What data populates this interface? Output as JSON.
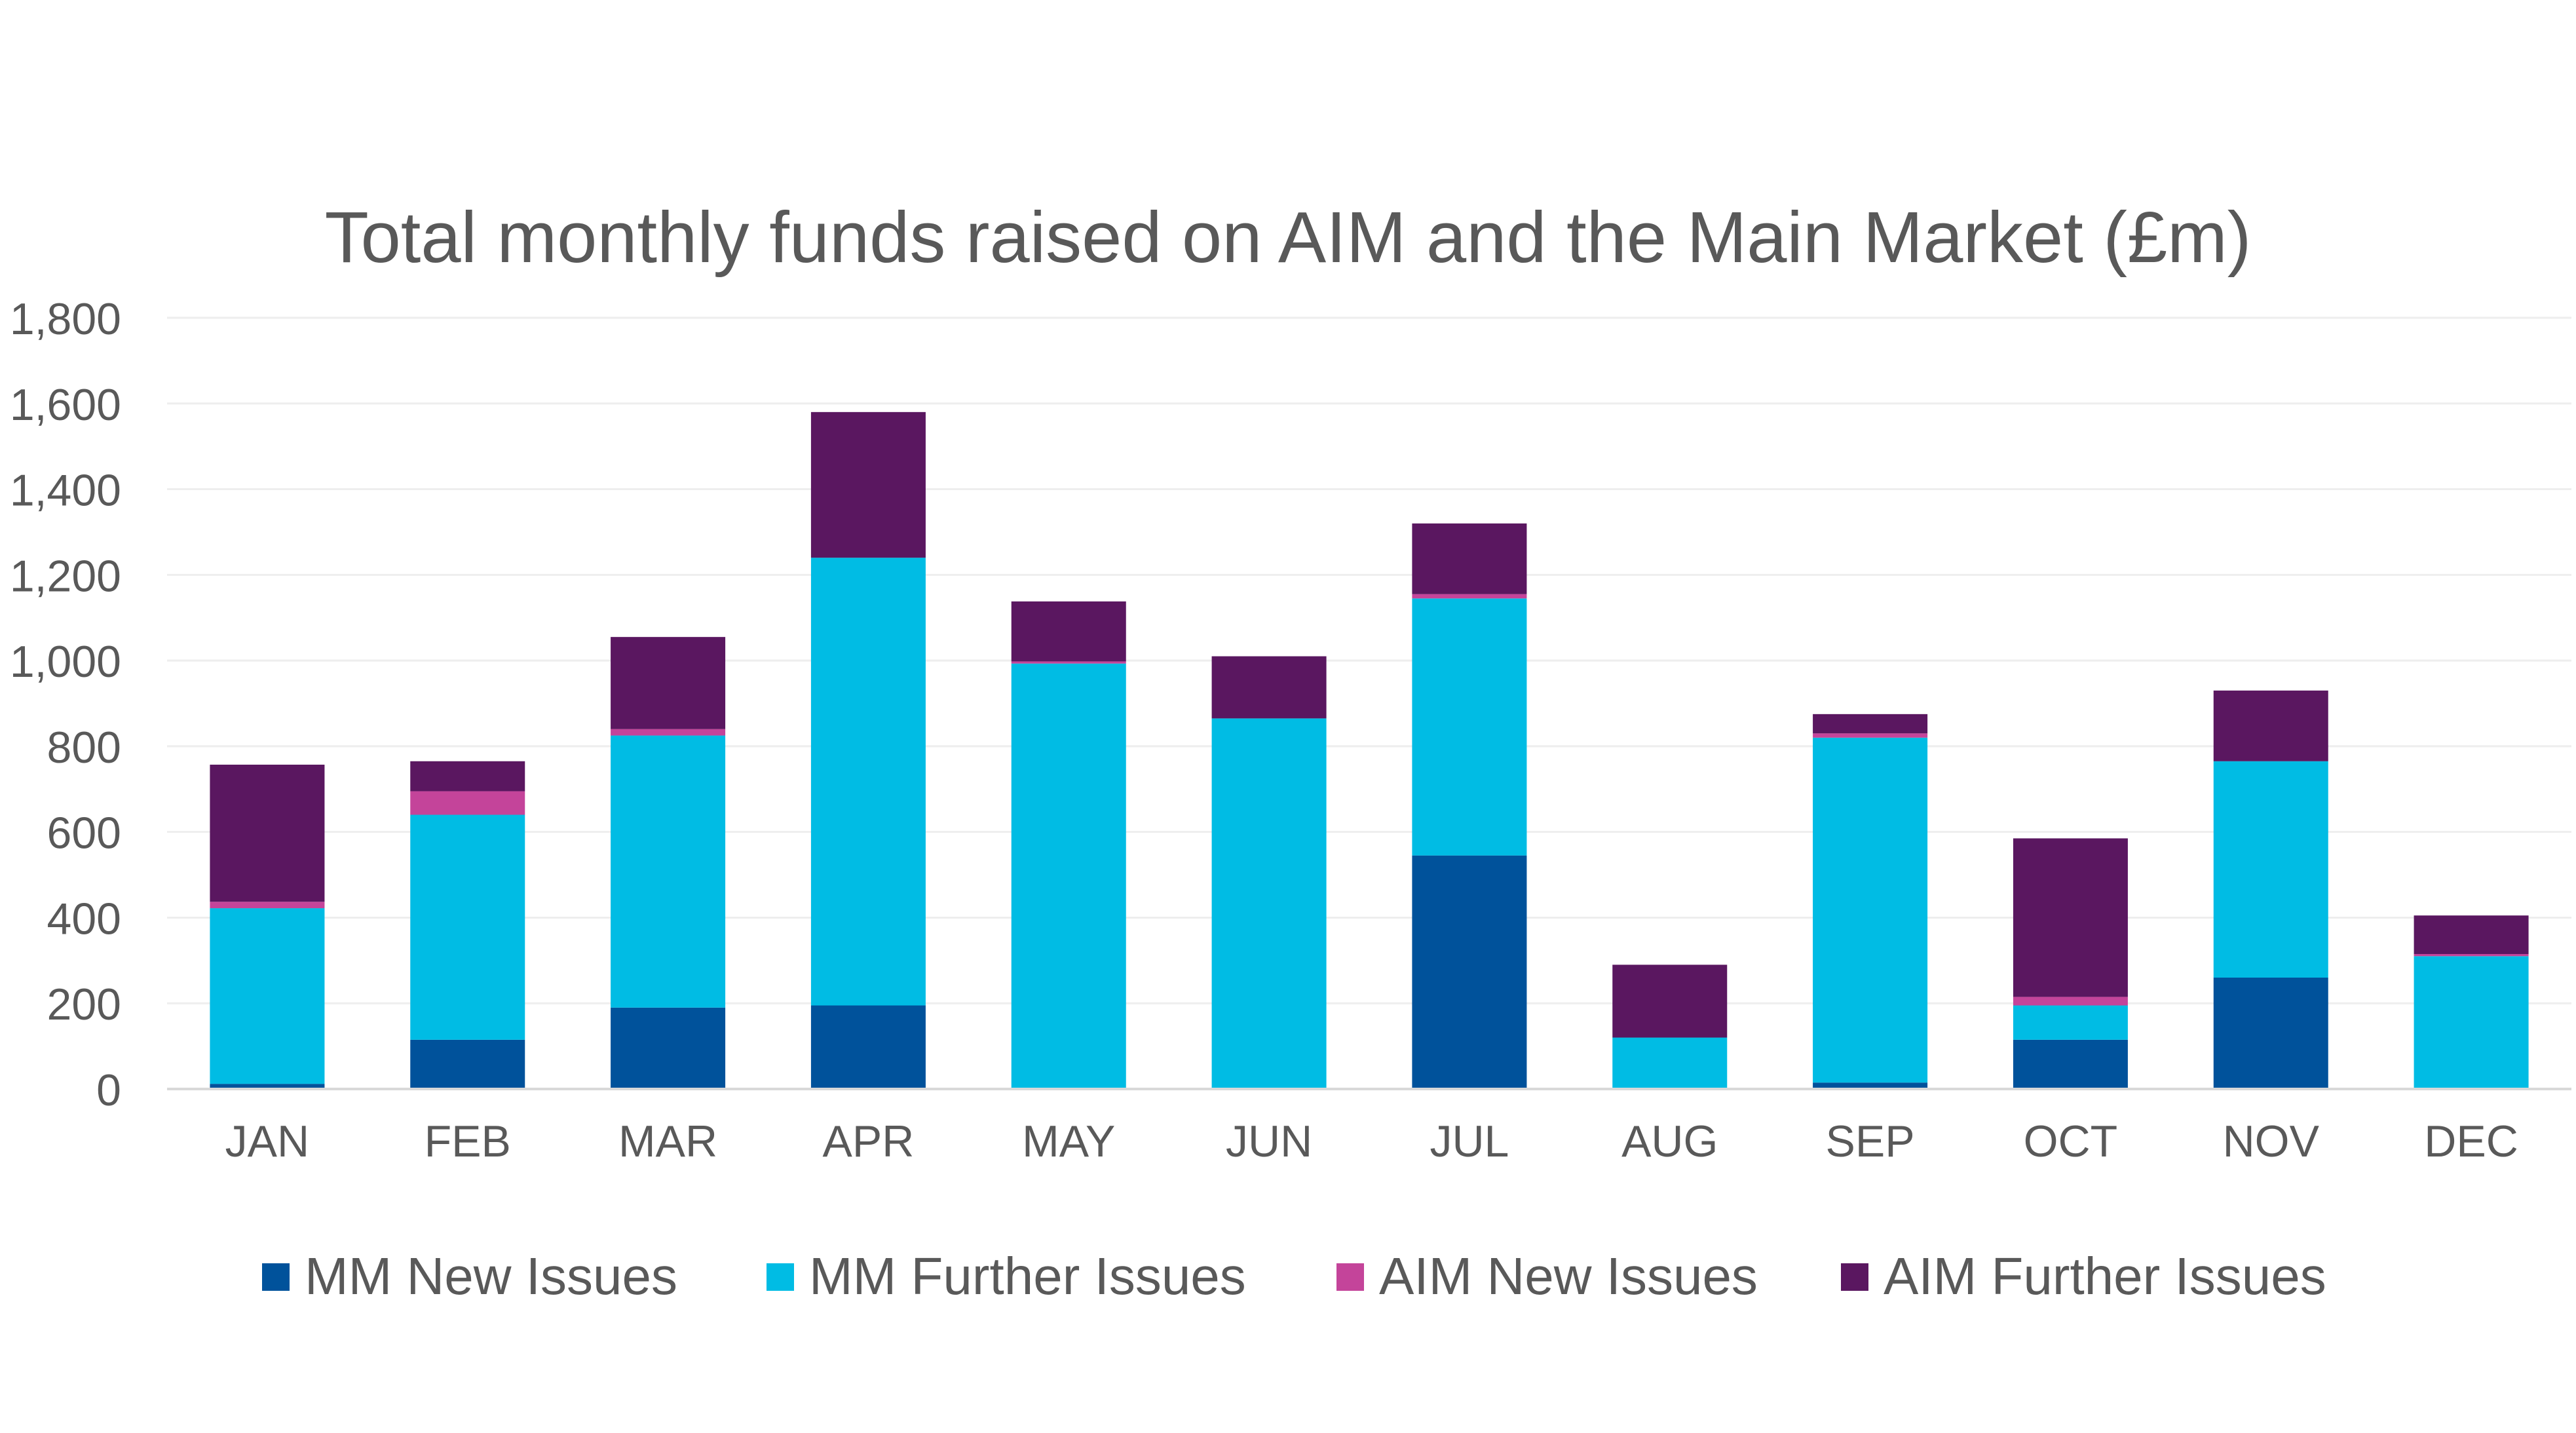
{
  "chart_data": {
    "type": "bar",
    "stacked": true,
    "title": "Total monthly funds raised on AIM and the Main Market (£m)",
    "xlabel": "",
    "ylabel": "",
    "ylim": [
      0,
      1800
    ],
    "yticks": [
      0,
      200,
      400,
      600,
      800,
      1000,
      1200,
      1400,
      1600,
      1800
    ],
    "ytick_labels": [
      "0",
      "200",
      "400",
      "600",
      "800",
      "1,000",
      "1,200",
      "1,400",
      "1,600",
      "1,800"
    ],
    "grid": true,
    "legend_position": "bottom",
    "categories": [
      "JAN",
      "FEB",
      "MAR",
      "APR",
      "MAY",
      "JUN",
      "JUL",
      "AUG",
      "SEP",
      "OCT",
      "NOV",
      "DEC"
    ],
    "series": [
      {
        "name": "MM New Issues",
        "color": "#00529b",
        "values": [
          12,
          115,
          190,
          195,
          3,
          0,
          545,
          0,
          15,
          115,
          260,
          0
        ]
      },
      {
        "name": "MM Further Issues",
        "color": "#00bce4",
        "values": [
          410,
          525,
          635,
          1045,
          990,
          865,
          600,
          120,
          805,
          80,
          505,
          310
        ]
      },
      {
        "name": "AIM New Issues",
        "color": "#c4449a",
        "values": [
          15,
          55,
          15,
          0,
          5,
          0,
          10,
          0,
          10,
          20,
          0,
          5
        ]
      },
      {
        "name": "AIM Further Issues",
        "color": "#5a1760",
        "values": [
          320,
          70,
          215,
          340,
          140,
          145,
          165,
          170,
          45,
          370,
          165,
          90
        ]
      }
    ]
  }
}
